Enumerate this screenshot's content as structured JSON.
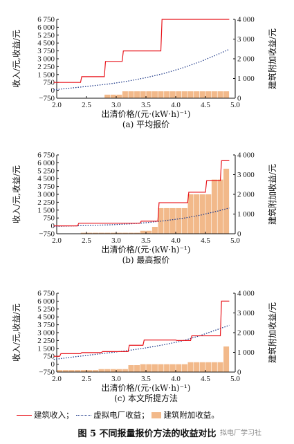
{
  "chart_data": [
    {
      "type": "line",
      "caption": "(a) 平均报价",
      "xlabel": "出清价格/(元·(kW·h)⁻¹)",
      "ylabel_left": "收入/元,收益/元",
      "ylabel_right": "建筑附加收益/元",
      "xlim": [
        2.0,
        5.0
      ],
      "ylim_left": [
        -750,
        6750
      ],
      "ylim_right": [
        0,
        4000
      ],
      "xticks": [
        "2.0",
        "2.5",
        "3.0",
        "3.5",
        "4.0",
        "4.5",
        "5.0"
      ],
      "yticks_left": [
        "−750",
        "0",
        "750",
        "1 500",
        "2 250",
        "3 000",
        "3 750",
        "4 500",
        "5 250",
        "6 000",
        "6 750"
      ],
      "yticks_right": [
        "0",
        "1 000",
        "2 000",
        "3 000",
        "4 000"
      ],
      "series": [
        {
          "name": "建筑收入",
          "x": [
            1.95,
            2.4,
            2.42,
            2.8,
            2.82,
            3.1,
            3.12,
            3.75,
            3.77,
            4.9
          ],
          "y": [
            750,
            750,
            1300,
            1300,
            2750,
            2750,
            3750,
            3750,
            6750,
            6750
          ]
        },
        {
          "name": "虚拟电厂收益",
          "x": [
            1.95,
            2.3,
            2.6,
            2.9,
            3.2,
            3.5,
            3.8,
            4.1,
            4.4,
            4.7,
            4.9
          ],
          "y": [
            50,
            250,
            430,
            620,
            880,
            1200,
            1600,
            2100,
            2700,
            3400,
            3900
          ]
        },
        {
          "name": "建筑附加收益",
          "bar_x": [
            2.85,
            2.95,
            3.05,
            3.15,
            3.25,
            3.35,
            3.45,
            3.55,
            3.65,
            3.75,
            3.85,
            3.95,
            4.05,
            4.15,
            4.25,
            4.35,
            4.45,
            4.55,
            4.65,
            4.75,
            4.85
          ],
          "bar_y": [
            180,
            180,
            180,
            350,
            350,
            350,
            350,
            350,
            350,
            350,
            350,
            350,
            350,
            350,
            350,
            350,
            350,
            350,
            350,
            350,
            350
          ]
        }
      ]
    },
    {
      "type": "line",
      "caption": "(b) 最高报价",
      "xlabel": "出清价格/(元·(kW·h)⁻¹)",
      "ylabel_left": "收入/元,收益/元",
      "ylabel_right": "建筑附加收益/元",
      "xlim": [
        2.0,
        5.0
      ],
      "ylim_left": [
        -750,
        6750
      ],
      "ylim_right": [
        0,
        4000
      ],
      "xticks": [
        "2.0",
        "2.5",
        "3.0",
        "3.5",
        "4.0",
        "4.5",
        "5.0"
      ],
      "yticks_left": [
        "−750",
        "0",
        "750",
        "1 500",
        "2 250",
        "3 000",
        "3 750",
        "4 500",
        "5 250",
        "6 000",
        "6 750"
      ],
      "yticks_right": [
        "0",
        "1 000",
        "2 000",
        "3 000",
        "4 000"
      ],
      "series": [
        {
          "name": "建筑收入",
          "x": [
            1.95,
            2.35,
            2.37,
            3.4,
            3.42,
            3.7,
            3.72,
            4.2,
            4.22,
            4.5,
            4.52,
            4.75,
            4.77,
            4.9
          ],
          "y": [
            0,
            0,
            250,
            250,
            450,
            450,
            2200,
            2200,
            3200,
            3200,
            4300,
            4300,
            6200,
            6200
          ]
        },
        {
          "name": "虚拟电厂收益",
          "x": [
            1.95,
            2.3,
            2.6,
            2.9,
            3.2,
            3.5,
            3.8,
            4.1,
            4.4,
            4.7,
            4.9
          ],
          "y": [
            -50,
            0,
            50,
            100,
            180,
            300,
            480,
            700,
            1000,
            1400,
            1700
          ]
        },
        {
          "name": "建筑附加收益",
          "bar_x": [
            2.45,
            2.55,
            2.65,
            2.75,
            2.85,
            2.95,
            3.05,
            3.15,
            3.25,
            3.35,
            3.45,
            3.55,
            3.65,
            3.75,
            3.85,
            3.95,
            4.05,
            4.15,
            4.25,
            4.35,
            4.45,
            4.55,
            4.65,
            4.75,
            4.85
          ],
          "bar_y": [
            50,
            50,
            50,
            50,
            50,
            50,
            50,
            50,
            50,
            50,
            150,
            150,
            350,
            1300,
            1300,
            1300,
            1300,
            1300,
            2000,
            2000,
            2000,
            2000,
            2750,
            2750,
            3300
          ]
        }
      ]
    },
    {
      "type": "line",
      "caption": "(c) 本文所提方法",
      "xlabel": "出清价格/(元·(kW·h)⁻¹)",
      "ylabel_left": "收入/元,收益/元",
      "ylabel_right": "建筑附加收益/元",
      "xlim": [
        2.0,
        5.0
      ],
      "ylim_left": [
        -750,
        6750
      ],
      "ylim_right": [
        0,
        4000
      ],
      "xticks": [
        "2.0",
        "2.5",
        "3.0",
        "3.5",
        "4.0",
        "4.5",
        "5.0"
      ],
      "yticks_left": [
        "−750",
        "0",
        "750",
        "1 500",
        "2 250",
        "3 000",
        "3 750",
        "4 500",
        "5 250",
        "6 000",
        "6 750"
      ],
      "yticks_right": [
        "0",
        "1 000",
        "2 000",
        "3 000",
        "4 000"
      ],
      "series": [
        {
          "name": "建筑收入",
          "x": [
            1.95,
            2.05,
            2.07,
            2.4,
            2.42,
            2.75,
            2.77,
            3.2,
            3.22,
            3.45,
            3.47,
            4.0,
            4.02,
            4.25,
            4.27,
            4.75,
            4.77,
            4.9
          ],
          "y": [
            750,
            750,
            1000,
            1000,
            1100,
            1100,
            1200,
            1200,
            1800,
            1800,
            2300,
            2300,
            2250,
            2250,
            2700,
            2700,
            6000,
            6000
          ]
        },
        {
          "name": "虚拟电厂收益",
          "x": [
            1.95,
            2.3,
            2.6,
            2.9,
            3.2,
            3.5,
            3.8,
            4.1,
            4.4,
            4.7,
            4.9
          ],
          "y": [
            450,
            700,
            900,
            1100,
            1300,
            1550,
            1850,
            2200,
            2700,
            3300,
            3700
          ]
        },
        {
          "name": "建筑附加收益",
          "bar_x": [
            2.05,
            2.15,
            2.25,
            2.35,
            2.45,
            2.55,
            2.65,
            2.75,
            2.85,
            2.95,
            3.05,
            3.15,
            3.25,
            3.35,
            3.45,
            3.55,
            3.65,
            3.75,
            3.85,
            3.95,
            4.05,
            4.15,
            4.25,
            4.35,
            4.45,
            4.55,
            4.65,
            4.75,
            4.85
          ],
          "bar_y": [
            100,
            100,
            100,
            100,
            100,
            100,
            100,
            150,
            150,
            150,
            150,
            150,
            350,
            350,
            400,
            400,
            400,
            400,
            400,
            400,
            400,
            400,
            500,
            500,
            500,
            500,
            500,
            500,
            1300
          ]
        }
      ]
    }
  ],
  "legend": {
    "revenue": "建筑收入；",
    "vpp": "虚拟电厂收益；",
    "extra": "建筑附加收益。"
  },
  "figure_title": "图 5    不同报量报价方法的收益对比",
  "watermark": "拟电厂学习社",
  "colors": {
    "revenue": "#e8141b",
    "vpp": "#1f3a8a",
    "bars": "#f2b98a"
  }
}
